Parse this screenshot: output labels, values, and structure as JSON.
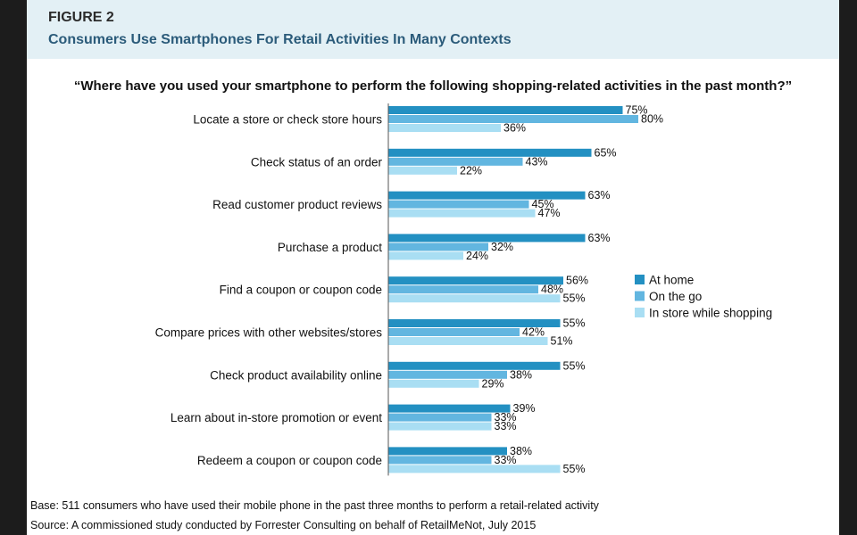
{
  "figure": {
    "label": "FIGURE 2",
    "title": "Consumers Use Smartphones For Retail Activities In Many Contexts",
    "question": "“Where have you used your smartphone to perform the following shopping-related activities in the past month?”"
  },
  "notes": {
    "base": "Base: 511 consumers who have used their mobile phone in the past three months to perform a retail-related activity",
    "source": "Source: A commissioned study conducted by Forrester Consulting on behalf of RetailMeNot, July 2015"
  },
  "colors": {
    "at_home": "#2390c2",
    "on_the_go": "#62b6e0",
    "in_store": "#a9def3"
  },
  "chart_data": {
    "type": "bar",
    "orientation": "horizontal",
    "title": "",
    "xlabel": "",
    "ylabel": "",
    "xlim": [
      0,
      100
    ],
    "grid": false,
    "legend_position": "right",
    "value_suffix": "%",
    "categories": [
      "Locate a store or check store hours",
      "Check status of an order",
      "Read customer product reviews",
      "Purchase a product",
      "Find a coupon or coupon code",
      "Compare prices with other websites/stores",
      "Check product availability online",
      "Learn about in-store promotion or event",
      "Redeem a coupon or coupon code"
    ],
    "series": [
      {
        "name": "At home",
        "values": [
          75,
          65,
          63,
          63,
          56,
          55,
          55,
          39,
          38
        ]
      },
      {
        "name": "On the go",
        "values": [
          80,
          43,
          45,
          32,
          48,
          42,
          38,
          33,
          33
        ]
      },
      {
        "name": "In store while shopping",
        "values": [
          36,
          22,
          47,
          24,
          55,
          51,
          29,
          33,
          55
        ]
      }
    ]
  }
}
